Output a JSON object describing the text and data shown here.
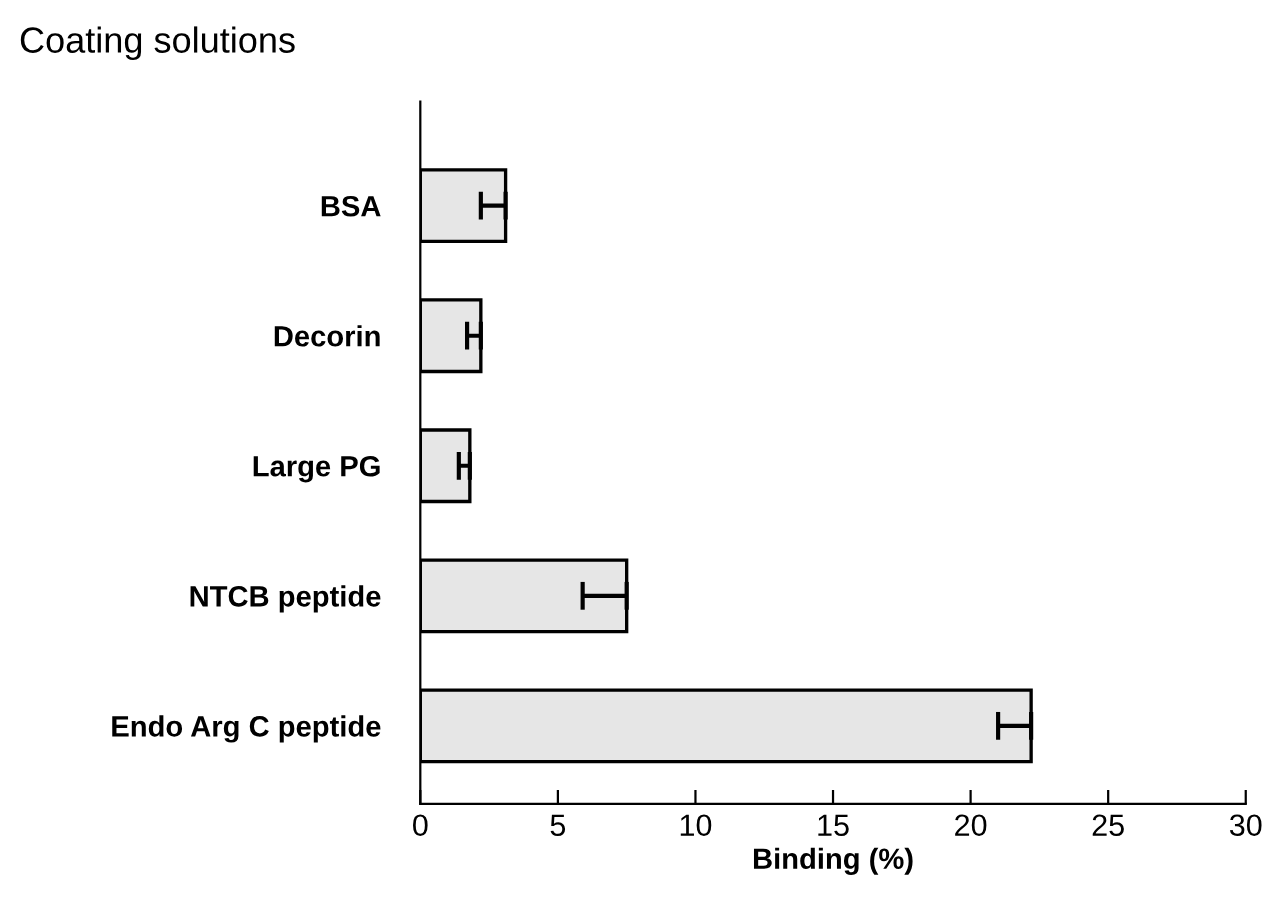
{
  "chart_data": {
    "type": "bar",
    "orientation": "horizontal",
    "title": "Coating solutions",
    "xlabel": "Binding (%)",
    "categories": [
      "BSA",
      "Decorin",
      "Large PG",
      "NTCB peptide",
      "Endo Arg C peptide"
    ],
    "values": [
      3.1,
      2.2,
      1.8,
      7.5,
      22.2
    ],
    "errors": [
      [
        2.2,
        3.1
      ],
      [
        1.7,
        2.2
      ],
      [
        1.4,
        1.8
      ],
      [
        5.9,
        7.5
      ],
      [
        21.0,
        22.2
      ]
    ],
    "color": "#e6e6e6",
    "xlim": [
      0,
      30
    ],
    "xticks": [
      0,
      5,
      10,
      15,
      20,
      25,
      30
    ],
    "grid": false
  }
}
